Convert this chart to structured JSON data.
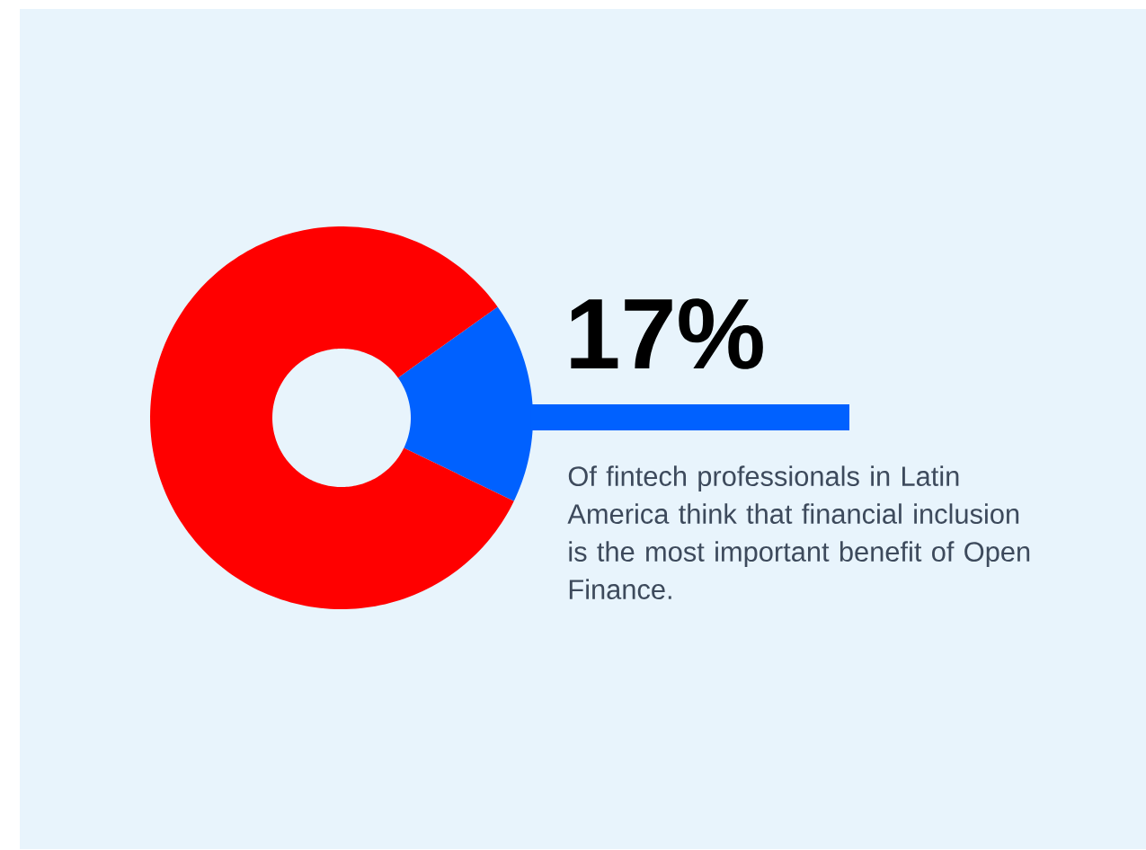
{
  "chart_data": {
    "type": "donut",
    "categories": [
      null,
      null
    ],
    "values": [
      17,
      83
    ],
    "colors": [
      "#0061ff",
      "#ff0000"
    ],
    "value_labels": [
      "17%",
      null
    ],
    "annotations": [
      "Of fintech professionals in Latin America think that financial inclusion is the most important benefit of Open Finance."
    ]
  }
}
